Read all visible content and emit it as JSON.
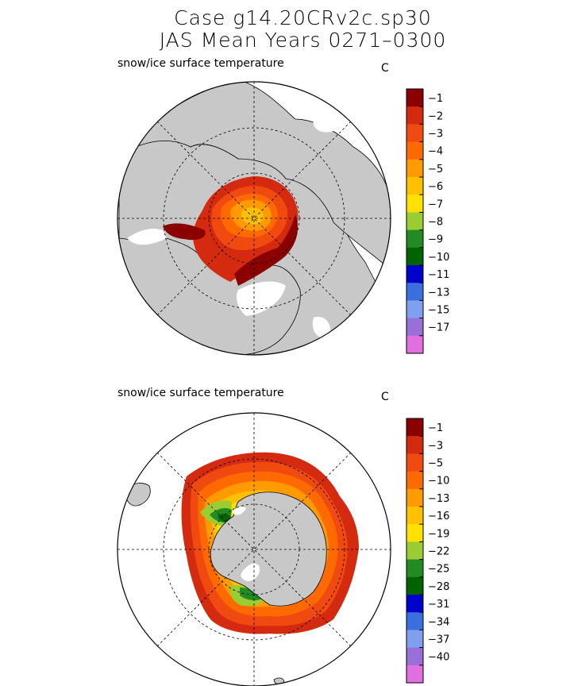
{
  "header": {
    "case_title": "Case g14.20CRv2c.sp30",
    "period_title": "JAS Mean    Years 0271–0300"
  },
  "panels": [
    {
      "name": "arctic",
      "title": "snow/ice surface temperature",
      "unit": "C",
      "colorbar": {
        "levels": [
          "−1",
          "−2",
          "−3",
          "−4",
          "−5",
          "−6",
          "−7",
          "−8",
          "−9",
          "−10",
          "−11",
          "−13",
          "−15",
          "−17"
        ],
        "colors": [
          "#8b0000",
          "#d42a10",
          "#f04a10",
          "#ff6a00",
          "#ff9a00",
          "#ffc000",
          "#ffe000",
          "#9acd32",
          "#228b22",
          "#006400",
          "#0000cd",
          "#3a6fe0",
          "#7fa0ee",
          "#9a6fd8",
          "#e070e0"
        ]
      }
    },
    {
      "name": "antarctic",
      "title": "snow/ice surface temperature",
      "unit": "C",
      "colorbar": {
        "levels": [
          "−1",
          "−3",
          "−5",
          "−10",
          "−13",
          "−16",
          "−19",
          "−22",
          "−25",
          "−28",
          "−31",
          "−34",
          "−37",
          "−40"
        ],
        "colors": [
          "#8b0000",
          "#d42a10",
          "#f04a10",
          "#ff6a00",
          "#ff9a00",
          "#ffc000",
          "#ffe000",
          "#9acd32",
          "#228b22",
          "#006400",
          "#0000cd",
          "#3a6fe0",
          "#7fa0ee",
          "#9a6fd8",
          "#e070e0"
        ]
      }
    }
  ]
}
